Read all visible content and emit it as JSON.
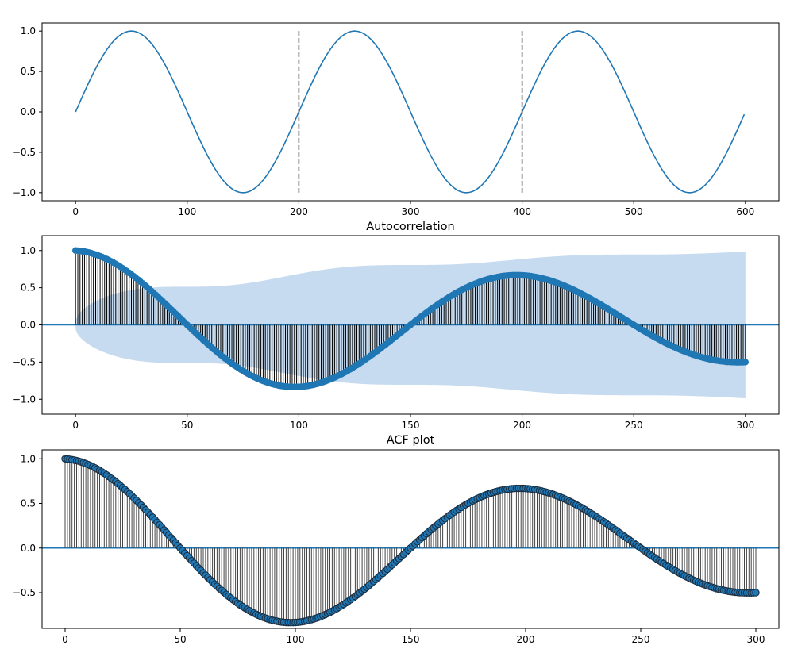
{
  "chart_data": [
    {
      "type": "line",
      "title": "",
      "xlabel": "",
      "ylabel": "",
      "xlim": [
        -30,
        630
      ],
      "ylim": [
        -1.1,
        1.1
      ],
      "xticks": [
        0,
        100,
        200,
        300,
        400,
        500,
        600
      ],
      "yticks": [
        -1.0,
        -0.5,
        0.0,
        0.5,
        1.0
      ],
      "xtick_labels": [
        "0",
        "100",
        "200",
        "300",
        "400",
        "500",
        "600"
      ],
      "ytick_labels": [
        "−1.0",
        "−0.5",
        "0.0",
        "0.5",
        "1.0"
      ],
      "series": [
        {
          "function": "sin(2*pi*x/200)",
          "x_range": [
            0,
            599
          ],
          "color": "#1f77b4"
        }
      ],
      "vlines": [
        {
          "x": 200,
          "ymin": -1.0,
          "ymax": 1.0,
          "style": "dashed",
          "color": "#555555"
        },
        {
          "x": 400,
          "ymin": -1.0,
          "ymax": 1.0,
          "style": "dashed",
          "color": "#555555"
        }
      ],
      "grid": false
    },
    {
      "type": "stem",
      "title": "Autocorrelation",
      "xlabel": "",
      "ylabel": "",
      "xlim": [
        -15,
        315
      ],
      "ylim": [
        -1.2,
        1.2
      ],
      "xticks": [
        0,
        50,
        100,
        150,
        200,
        250,
        300
      ],
      "yticks": [
        -1.0,
        -0.5,
        0.0,
        0.5,
        1.0
      ],
      "xtick_labels": [
        "0",
        "50",
        "100",
        "150",
        "200",
        "250",
        "300"
      ],
      "ytick_labels": [
        "−1.0",
        "−0.5",
        "0.0",
        "0.5",
        "1.0"
      ],
      "lags": [
        0,
        300
      ],
      "acf_function": "(1 - k/600) * cos(2*pi*k/200)",
      "confidence_band": "shaded region, about ±0.55 at lag 50 growing to about ±1.05 at lag 300",
      "marker_color": "#1f77b4",
      "stem_color": "#000000",
      "band_color": "#c6dbef",
      "grid": false
    },
    {
      "type": "stem",
      "title": "ACF plot",
      "xlabel": "",
      "ylabel": "",
      "xlim": [
        -10,
        310
      ],
      "ylim": [
        -0.9,
        1.1
      ],
      "xticks": [
        0,
        50,
        100,
        150,
        200,
        250,
        300
      ],
      "yticks": [
        -0.5,
        0.0,
        0.5,
        1.0
      ],
      "xtick_labels": [
        "0",
        "50",
        "100",
        "150",
        "200",
        "250",
        "300"
      ],
      "ytick_labels": [
        "−0.5",
        "0.0",
        "0.5",
        "1.0"
      ],
      "lags": [
        0,
        300
      ],
      "acf_function": "(1 - k/600) * cos(2*pi*k/200)",
      "marker_color": "#1f77b4",
      "marker_edge_color": "#1b2a3a",
      "stem_color": "#444444",
      "grid": false
    }
  ]
}
